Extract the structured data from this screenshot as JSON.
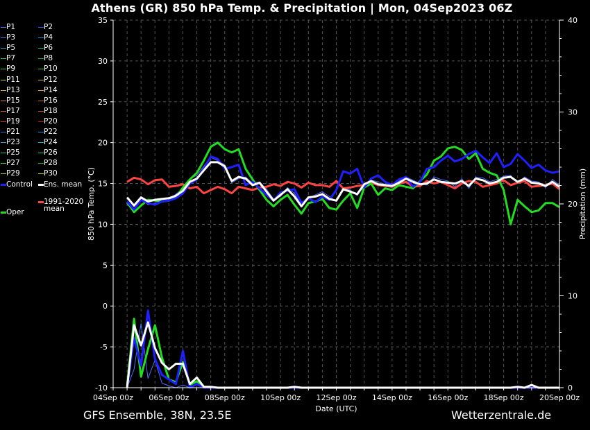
{
  "header": {
    "title": "Athens  (GR)  850 hPa Temp. & Precipitation | Mon, 04Sep2023 06Z"
  },
  "footer": {
    "left": "GFS Ensemble, 38N, 23.5E",
    "right": "Wetterzentrale.de"
  },
  "legend": {
    "items": [
      {
        "label": "P1",
        "color": "#4f6fff"
      },
      {
        "label": "P2",
        "color": "#2d52ff"
      },
      {
        "label": "P3",
        "color": "#3a7fd5"
      },
      {
        "label": "P4",
        "color": "#1e8fd5"
      },
      {
        "label": "P5",
        "color": "#2aa6c8"
      },
      {
        "label": "P6",
        "color": "#1fc08a"
      },
      {
        "label": "P7",
        "color": "#22c47a"
      },
      {
        "label": "P8",
        "color": "#1aa64a"
      },
      {
        "label": "P9",
        "color": "#2ed12e"
      },
      {
        "label": "P10",
        "color": "#3ec428"
      },
      {
        "label": "P11",
        "color": "#c8c832"
      },
      {
        "label": "P12",
        "color": "#d6b43c"
      },
      {
        "label": "P13",
        "color": "#d9a526"
      },
      {
        "label": "P14",
        "color": "#e0962a"
      },
      {
        "label": "P15",
        "color": "#d98a5a"
      },
      {
        "label": "P16",
        "color": "#c06a28"
      },
      {
        "label": "P17",
        "color": "#d65c2e"
      },
      {
        "label": "P18",
        "color": "#c84a32"
      },
      {
        "label": "P19",
        "color": "#c83232"
      },
      {
        "label": "P20",
        "color": "#b82020"
      },
      {
        "label": "P21",
        "color": "#2a6ad5"
      },
      {
        "label": "P22",
        "color": "#1f86e0"
      },
      {
        "label": "P23",
        "color": "#2aa0d0"
      },
      {
        "label": "P24",
        "color": "#1fb4c8"
      },
      {
        "label": "P25",
        "color": "#1fc0a0"
      },
      {
        "label": "P26",
        "color": "#1fc88a"
      },
      {
        "label": "P27",
        "color": "#38cc50"
      },
      {
        "label": "P28",
        "color": "#22b43a"
      },
      {
        "label": "P29",
        "color": "#8ad23a"
      },
      {
        "label": "P30",
        "color": "#c8c820"
      }
    ],
    "control_label": "Control",
    "control_color": "#2020ff",
    "ens_label": "Ens. mean",
    "ens_color": "#ffffff",
    "oper_label": "Oper",
    "oper_color": "#22dd22",
    "clim_label_1": "1991-2020",
    "clim_label_2": "mean",
    "clim_color": "#ff4444"
  },
  "chart_data": {
    "type": "line",
    "xlabel": "Date (UTC)",
    "ylabel": "850 hPa Temp. (°C)",
    "y2label": "Precipitation (mm)",
    "x_start": "2023-09-04 00:00",
    "x_end": "2023-09-20 00:00",
    "x_step_hours": 6,
    "ylim": [
      -10,
      35
    ],
    "y2lim": [
      0,
      40
    ],
    "yticks": [
      "-10",
      "-5",
      "0",
      "5",
      "10",
      "15",
      "20",
      "25",
      "30",
      "35"
    ],
    "y2ticks": [
      "0",
      "10",
      "20",
      "30",
      "40"
    ],
    "xticks": [
      "04Sep 00z",
      "06Sep 00z",
      "08Sep 00z",
      "10Sep 00z",
      "12Sep 00z",
      "14Sep 00z",
      "16Sep 00z",
      "18Sep 00z",
      "20Sep 00z"
    ],
    "grid": true,
    "series": [
      {
        "name": "Control",
        "role": "temp",
        "color": "#2020ff",
        "width": 3,
        "values": [
          null,
          null,
          12.8,
          11.8,
          13.0,
          12.6,
          12.4,
          12.8,
          12.9,
          13.2,
          13.8,
          15.0,
          15.5,
          16.8,
          18.3,
          18.0,
          16.8,
          17.0,
          17.3,
          14.8,
          15.2,
          14.4,
          13.6,
          12.9,
          13.9,
          14.1,
          14.3,
          12.6,
          13.2,
          12.7,
          13.4,
          13.0,
          14.2,
          16.5,
          16.2,
          16.8,
          14.5,
          15.6,
          16.0,
          15.2,
          14.8,
          15.5,
          15.8,
          14.6,
          15.2,
          16.8,
          17.0,
          17.8,
          18.4,
          17.7,
          18.0,
          18.6,
          19.0,
          18.2,
          17.5,
          18.7,
          17.0,
          17.4,
          18.6,
          17.8,
          16.9,
          17.3,
          16.6,
          16.3,
          16.5
        ]
      },
      {
        "name": "Ens. mean",
        "role": "temp",
        "color": "#ffffff",
        "width": 3,
        "values": [
          null,
          null,
          13.3,
          12.3,
          13.3,
          12.8,
          13.0,
          13.1,
          13.2,
          13.5,
          14.1,
          15.2,
          15.6,
          16.6,
          17.6,
          17.6,
          17.1,
          15.3,
          15.8,
          15.6,
          14.8,
          15.1,
          14.0,
          12.9,
          13.6,
          14.3,
          13.4,
          12.2,
          13.3,
          13.4,
          13.7,
          13.1,
          12.9,
          14.3,
          14.0,
          13.7,
          14.9,
          15.3,
          14.9,
          14.8,
          14.7,
          15.1,
          15.6,
          15.2,
          14.9,
          15.0,
          15.5,
          15.2,
          15.1,
          15.0,
          15.3,
          14.7,
          15.6,
          15.4,
          15.0,
          15.2,
          15.7,
          15.8,
          15.2,
          15.6,
          15.1,
          15.0,
          14.7,
          15.2,
          14.6
        ]
      },
      {
        "name": "Oper",
        "role": "temp",
        "color": "#22dd22",
        "width": 3,
        "values": [
          null,
          null,
          12.7,
          11.5,
          12.3,
          13.0,
          12.9,
          12.8,
          12.9,
          13.3,
          14.5,
          15.5,
          16.3,
          17.8,
          19.5,
          20.0,
          19.2,
          18.8,
          19.2,
          16.8,
          15.5,
          14.2,
          13.0,
          12.2,
          13.0,
          13.6,
          12.4,
          11.3,
          12.6,
          12.8,
          13.1,
          12.0,
          11.8,
          12.9,
          13.8,
          12.0,
          14.5,
          15.0,
          13.6,
          14.4,
          14.2,
          14.8,
          14.6,
          14.4,
          15.3,
          16.1,
          17.8,
          18.3,
          19.3,
          19.5,
          19.1,
          18.0,
          18.7,
          16.8,
          16.3,
          16.0,
          14.2,
          10.0,
          13.0,
          12.2,
          11.5,
          11.7,
          12.6,
          12.6,
          12.1
        ]
      },
      {
        "name": "1991-2020 mean",
        "role": "temp",
        "color": "#ff4444",
        "width": 3,
        "values": [
          null,
          null,
          15.2,
          15.7,
          15.5,
          14.9,
          15.4,
          15.5,
          14.6,
          14.7,
          14.9,
          14.4,
          14.6,
          13.8,
          14.2,
          14.6,
          14.3,
          13.8,
          14.6,
          14.4,
          14.2,
          14.5,
          14.6,
          14.9,
          14.7,
          15.2,
          15.0,
          14.5,
          15.1,
          14.8,
          14.8,
          14.6,
          15.3,
          14.4,
          14.5,
          14.7,
          14.8,
          15.1,
          14.8,
          14.7,
          14.6,
          15.0,
          15.2,
          14.6,
          14.7,
          15.3,
          15.0,
          15.2,
          14.8,
          14.4,
          15.0,
          15.3,
          15.2,
          14.6,
          14.8,
          15.0,
          15.4,
          14.8,
          15.1,
          15.3,
          14.6,
          14.7,
          14.8,
          15.0,
          14.3
        ]
      },
      {
        "name": "Ens. mean",
        "role": "precip",
        "color": "#ffffff",
        "width": 3,
        "values": [
          null,
          null,
          0.0,
          6.8,
          4.6,
          7.1,
          4.3,
          2.7,
          2.0,
          2.6,
          2.6,
          0.4,
          1.1,
          0.1,
          0.1,
          0.0,
          0.0,
          0.0,
          0.0,
          0.0,
          0.0,
          0.0,
          0.0,
          0.0,
          0.0,
          0.0,
          0.1,
          0.0,
          0.0,
          0.0,
          0.0,
          0.0,
          0.0,
          0.0,
          0.0,
          0.0,
          0.0,
          0.0,
          0.0,
          0.0,
          0.0,
          0.0,
          0.0,
          0.0,
          0.0,
          0.0,
          0.0,
          0.0,
          0.0,
          0.0,
          0.0,
          0.0,
          0.0,
          0.0,
          0.0,
          0.0,
          0.0,
          0.0,
          0.1,
          0.0,
          0.3,
          0.0,
          0.0,
          0.0,
          0.0
        ]
      },
      {
        "name": "Control",
        "role": "precip",
        "color": "#2020ff",
        "width": 3,
        "values": [
          null,
          null,
          0.0,
          5.4,
          2.4,
          8.4,
          3.1,
          1.4,
          0.9,
          0.4,
          4.0,
          0.0,
          0.4,
          0.0,
          0.0,
          0.0,
          0.0,
          0.0,
          0.0,
          0.0,
          0.0,
          0.0,
          0.0,
          0.0,
          0.0,
          0.0,
          0.0,
          0.0,
          0.0,
          0.0,
          0.0,
          0.0,
          0.0,
          0.0,
          0.0,
          0.0,
          0.0,
          0.0,
          0.0,
          0.0,
          0.0,
          0.0,
          0.0,
          0.0,
          0.0,
          0.0,
          0.0,
          0.0,
          0.0,
          0.0,
          0.0,
          0.0,
          0.0,
          0.0,
          0.0,
          0.0,
          0.0,
          0.0,
          0.0,
          0.0,
          0.0,
          0.0,
          0.0,
          0.0,
          0.0
        ]
      },
      {
        "name": "Oper",
        "role": "precip",
        "color": "#22dd22",
        "width": 3,
        "values": [
          null,
          null,
          0.2,
          7.5,
          1.2,
          4.2,
          6.8,
          3.3,
          0.9,
          0.6,
          2.8,
          0.3,
          0.7,
          0.1,
          0.0,
          0.0,
          0.0,
          0.0,
          0.0,
          0.0,
          0.0,
          0.0,
          0.0,
          0.0,
          0.0,
          0.0,
          0.0,
          0.0,
          0.0,
          0.0,
          0.0,
          0.0,
          0.0,
          0.0,
          0.0,
          0.0,
          0.0,
          0.0,
          0.0,
          0.0,
          0.0,
          0.0,
          0.0,
          0.0,
          0.0,
          0.0,
          0.0,
          0.0,
          0.0,
          0.0,
          0.0,
          0.0,
          0.0,
          0.0,
          0.0,
          0.0,
          0.0,
          0.0,
          0.0,
          0.0,
          0.0,
          0.0,
          0.0,
          0.0,
          0.0
        ]
      }
    ],
    "members_note_omitted": false,
    "member_spread": [
      {
        "name": "P1",
        "temp": [
          null,
          null,
          12.4,
          11.9,
          13.2,
          12.4,
          12.6,
          12.7,
          13.0,
          13.7,
          14.4,
          15.6,
          16.0,
          17.1,
          18.2,
          17.8,
          17.3,
          15.1,
          15.6,
          15.8,
          15.0,
          15.2,
          14.3,
          13.1,
          13.4,
          14.5,
          13.8,
          12.3,
          13.2,
          13.6,
          14.0,
          13.4,
          12.8,
          14.5,
          14.2,
          13.5,
          14.7,
          15.4,
          15.2,
          14.9,
          14.5,
          15.3,
          15.8,
          15.4,
          15.0,
          14.8,
          15.8,
          15.5,
          15.3,
          14.6,
          15.6,
          14.4,
          15.8,
          15.7,
          15.2,
          15.5,
          15.9,
          16.0,
          15.0,
          15.8,
          15.3,
          15.2,
          14.5,
          15.5,
          14.8
        ],
        "precip": [
          null,
          null,
          0.0,
          2.0,
          7.0,
          1.0,
          3.0,
          0.5,
          0.2,
          0.0,
          0.3,
          0.0,
          0.0,
          0.0,
          0.0,
          0.0,
          0.0,
          0.0,
          0.0,
          0.0,
          0.0,
          0.0,
          0.0,
          0.0,
          0.0,
          0.0,
          0.0,
          0.0,
          0.0,
          0.0,
          0.0,
          0.0,
          0.0,
          0.0,
          0.0,
          0.0,
          0.0,
          0.0,
          0.0,
          0.0,
          0.0,
          0.0,
          0.0,
          0.0,
          0.0,
          0.0,
          0.0,
          0.0,
          0.0,
          0.0,
          0.0,
          0.0,
          0.0,
          0.0,
          0.0,
          0.0,
          0.0,
          0.0,
          0.0,
          0.0,
          0.0,
          0.0,
          0.0,
          0.0,
          0.0
        ]
      }
    ]
  }
}
